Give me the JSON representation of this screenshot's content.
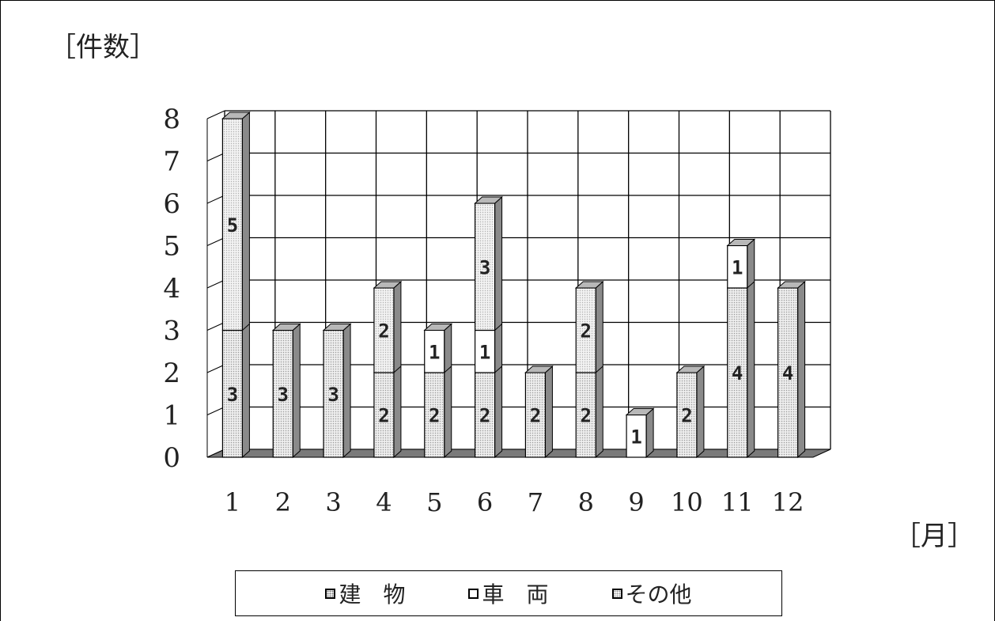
{
  "chart_data": {
    "type": "bar",
    "stacked": true,
    "three_d": true,
    "ylabel": "［件数］",
    "xlabel": "［月］",
    "categories": [
      "1",
      "2",
      "3",
      "4",
      "5",
      "6",
      "7",
      "8",
      "9",
      "10",
      "11",
      "12"
    ],
    "y_ticks": [
      "0",
      "1",
      "2",
      "3",
      "4",
      "5",
      "6",
      "7",
      "8"
    ],
    "ylim": [
      0,
      8
    ],
    "grid": true,
    "legend_position": "bottom",
    "series": [
      {
        "name": "建　物",
        "values": [
          3,
          3,
          3,
          2,
          2,
          2,
          2,
          2,
          0,
          2,
          4,
          4
        ]
      },
      {
        "name": "車　両",
        "values": [
          0,
          0,
          0,
          0,
          1,
          1,
          0,
          0,
          1,
          0,
          1,
          0
        ]
      },
      {
        "name": "その他",
        "values": [
          5,
          0,
          0,
          2,
          0,
          3,
          0,
          2,
          0,
          0,
          0,
          0
        ]
      }
    ],
    "colors": {
      "bar_front": "#e4e4e4",
      "bar_side": "#8a8a8a",
      "bar_top": "#b8b8b8",
      "plain_front": "#ffffff",
      "floor": "#7a7a7a"
    }
  },
  "legend": {
    "items": [
      "建　物",
      "車　両",
      "その他"
    ]
  }
}
